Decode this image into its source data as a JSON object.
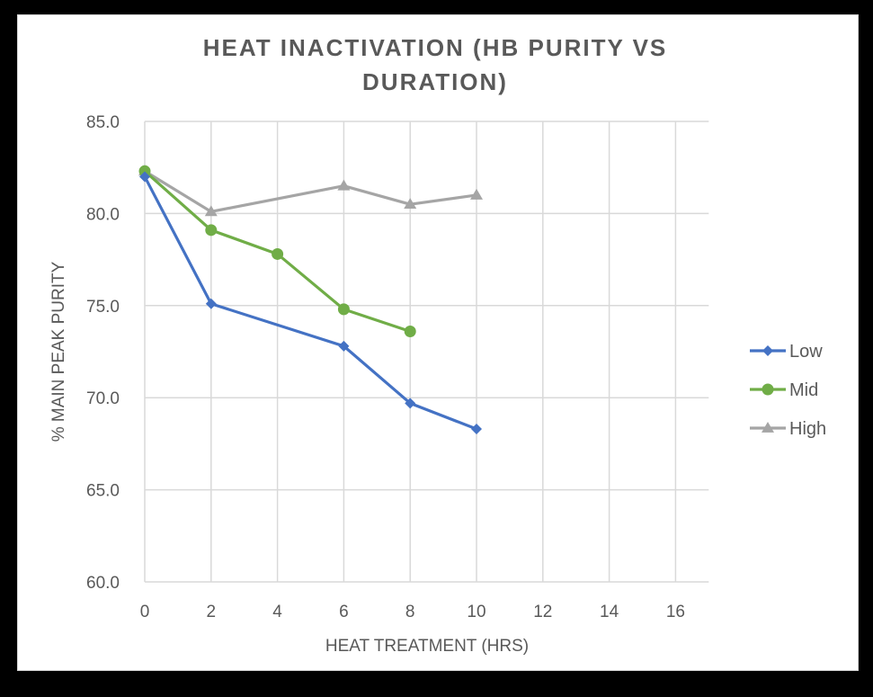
{
  "chart_data": {
    "type": "line",
    "title_lines": [
      "HEAT INACTIVATION (HB PURITY VS",
      "DURATION)"
    ],
    "xlabel": "HEAT TREATMENT (HRS)",
    "ylabel": "% MAIN PEAK PURITY",
    "xlim": [
      0,
      17
    ],
    "ylim": [
      60,
      85
    ],
    "x_ticks": [
      0,
      2,
      4,
      6,
      8,
      10,
      12,
      14,
      16
    ],
    "x_tick_labels": [
      "0",
      "2",
      "4",
      "6",
      "8",
      "10",
      "12",
      "14",
      "16"
    ],
    "y_ticks": [
      60,
      65,
      70,
      75,
      80,
      85
    ],
    "y_tick_labels": [
      "60.0",
      "65.0",
      "70.0",
      "75.0",
      "80.0",
      "85.0"
    ],
    "grid": true,
    "legend_position": "right",
    "series": [
      {
        "name": "Low",
        "color": "#4472C4",
        "marker": "diamond",
        "x": [
          0,
          2,
          6,
          8,
          10
        ],
        "values": [
          82.0,
          75.1,
          72.8,
          69.7,
          68.3
        ]
      },
      {
        "name": "Mid",
        "color": "#70AD47",
        "marker": "circle",
        "x": [
          0,
          2,
          4,
          6,
          8
        ],
        "values": [
          82.3,
          79.1,
          77.8,
          74.8,
          73.6
        ]
      },
      {
        "name": "High",
        "color": "#A5A5A5",
        "marker": "triangle",
        "x": [
          0,
          2,
          6,
          8,
          10
        ],
        "values": [
          82.3,
          80.1,
          81.5,
          80.5,
          81.0
        ]
      }
    ]
  }
}
